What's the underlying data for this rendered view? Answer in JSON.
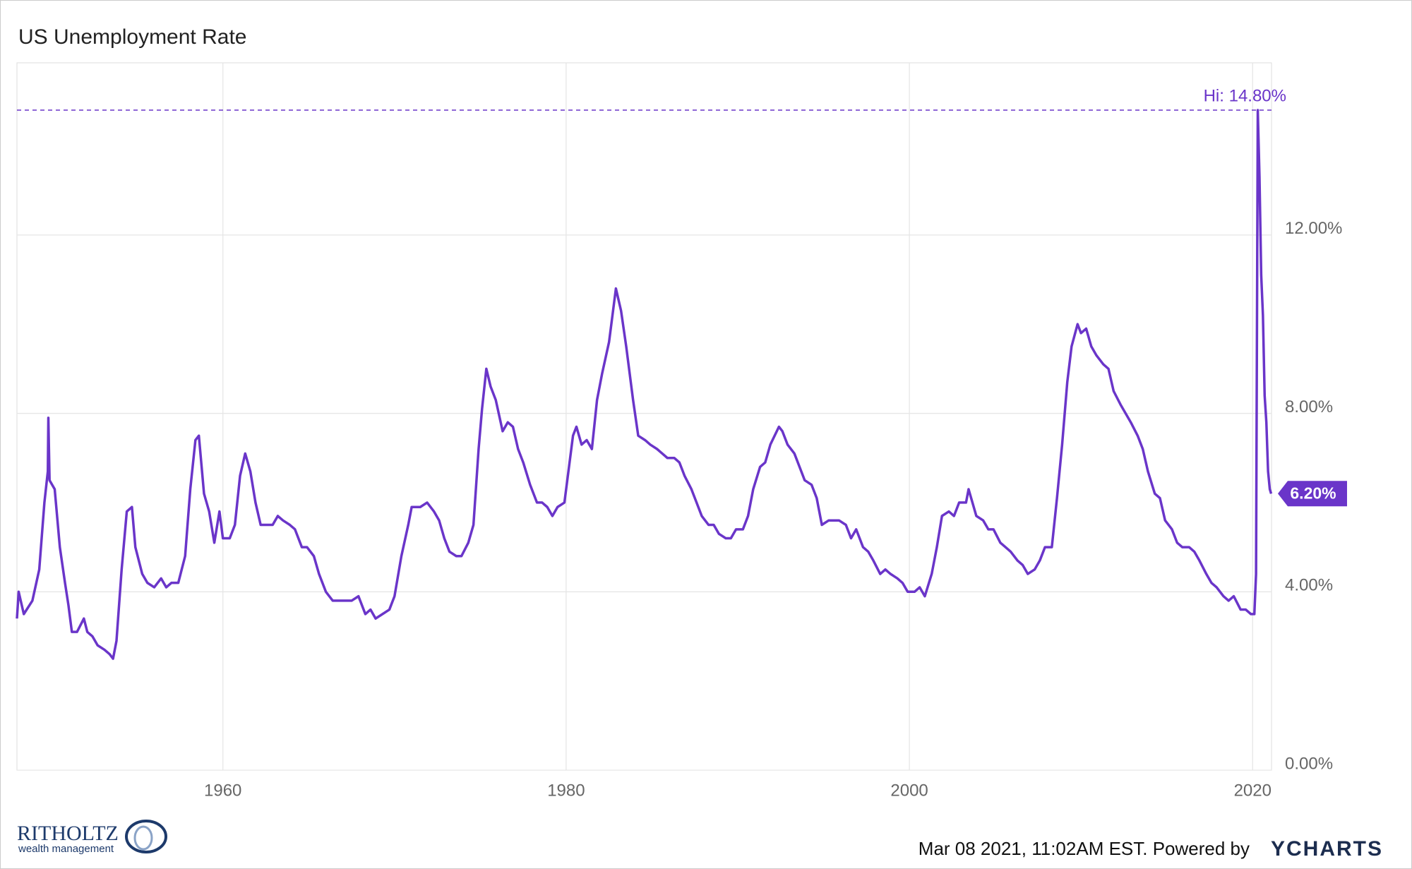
{
  "chart_data": {
    "type": "line",
    "title": "US Unemployment Rate",
    "x": [
      1948.0,
      1948.1,
      1948.4,
      1948.9,
      1949.3,
      1949.6,
      1949.8,
      1949.83,
      1949.9,
      1950.2,
      1950.5,
      1950.8,
      1951.0,
      1951.2,
      1951.5,
      1951.9,
      1952.1,
      1952.4,
      1952.7,
      1953.1,
      1953.4,
      1953.6,
      1953.8,
      1954.1,
      1954.4,
      1954.7,
      1954.9,
      1955.3,
      1955.6,
      1956.0,
      1956.4,
      1956.7,
      1957.0,
      1957.4,
      1957.8,
      1958.1,
      1958.4,
      1958.6,
      1958.9,
      1959.2,
      1959.5,
      1959.8,
      1960.0,
      1960.4,
      1960.7,
      1961.0,
      1961.3,
      1961.6,
      1961.9,
      1962.2,
      1962.5,
      1962.9,
      1963.2,
      1963.5,
      1963.9,
      1964.2,
      1964.6,
      1964.9,
      1965.3,
      1965.6,
      1966.0,
      1966.4,
      1966.8,
      1967.2,
      1967.5,
      1967.9,
      1968.3,
      1968.6,
      1968.9,
      1969.3,
      1969.7,
      1970.0,
      1970.4,
      1970.8,
      1971.0,
      1971.5,
      1971.9,
      1972.3,
      1972.6,
      1972.9,
      1973.2,
      1973.6,
      1973.9,
      1974.3,
      1974.6,
      1974.9,
      1975.1,
      1975.35,
      1975.6,
      1975.9,
      1976.3,
      1976.6,
      1976.9,
      1977.2,
      1977.5,
      1977.9,
      1978.3,
      1978.6,
      1978.9,
      1979.2,
      1979.5,
      1979.9,
      1980.2,
      1980.4,
      1980.6,
      1980.9,
      1981.2,
      1981.5,
      1981.8,
      1982.1,
      1982.5,
      1982.9,
      1983.2,
      1983.5,
      1983.9,
      1984.2,
      1984.6,
      1984.9,
      1985.3,
      1985.6,
      1985.9,
      1986.3,
      1986.6,
      1986.9,
      1987.3,
      1987.6,
      1987.9,
      1988.3,
      1988.6,
      1988.9,
      1989.3,
      1989.6,
      1989.9,
      1990.3,
      1990.6,
      1990.9,
      1991.3,
      1991.6,
      1991.9,
      1992.4,
      1992.6,
      1992.9,
      1993.3,
      1993.6,
      1993.9,
      1994.3,
      1994.6,
      1994.9,
      1995.3,
      1995.6,
      1995.9,
      1996.3,
      1996.6,
      1996.9,
      1997.3,
      1997.6,
      1997.9,
      1998.3,
      1998.6,
      1998.9,
      1999.3,
      1999.6,
      1999.9,
      2000.3,
      2000.6,
      2000.9,
      2001.3,
      2001.6,
      2001.9,
      2002.3,
      2002.6,
      2002.9,
      2003.3,
      2003.45,
      2003.9,
      2004.3,
      2004.6,
      2004.9,
      2005.3,
      2005.6,
      2005.9,
      2006.3,
      2006.6,
      2006.9,
      2007.3,
      2007.6,
      2007.9,
      2008.3,
      2008.6,
      2008.9,
      2009.2,
      2009.45,
      2009.8,
      2010.0,
      2010.3,
      2010.6,
      2010.9,
      2011.3,
      2011.6,
      2011.9,
      2012.3,
      2012.6,
      2012.9,
      2013.3,
      2013.6,
      2013.9,
      2014.3,
      2014.6,
      2014.9,
      2015.3,
      2015.6,
      2015.9,
      2016.3,
      2016.6,
      2016.9,
      2017.3,
      2017.6,
      2017.9,
      2018.3,
      2018.6,
      2018.9,
      2019.3,
      2019.6,
      2019.9,
      2020.1,
      2020.2,
      2020.3,
      2020.4,
      2020.5,
      2020.6,
      2020.7,
      2020.8,
      2020.9,
      2021.0,
      2021.08
    ],
    "series": [
      {
        "color": "#6a35c9",
        "values": [
          3.4,
          4.0,
          3.5,
          3.8,
          4.5,
          6.0,
          6.7,
          7.9,
          6.5,
          6.3,
          5.0,
          4.2,
          3.7,
          3.1,
          3.1,
          3.4,
          3.1,
          3.0,
          2.8,
          2.7,
          2.6,
          2.5,
          2.9,
          4.5,
          5.8,
          5.9,
          5.0,
          4.4,
          4.2,
          4.1,
          4.3,
          4.1,
          4.2,
          4.2,
          4.8,
          6.3,
          7.4,
          7.5,
          6.2,
          5.8,
          5.1,
          5.8,
          5.2,
          5.2,
          5.5,
          6.6,
          7.1,
          6.7,
          6.0,
          5.5,
          5.5,
          5.5,
          5.7,
          5.6,
          5.5,
          5.4,
          5.0,
          5.0,
          4.8,
          4.4,
          4.0,
          3.8,
          3.8,
          3.8,
          3.8,
          3.9,
          3.5,
          3.6,
          3.4,
          3.5,
          3.6,
          3.9,
          4.8,
          5.5,
          5.9,
          5.9,
          6.0,
          5.8,
          5.6,
          5.2,
          4.9,
          4.8,
          4.8,
          5.1,
          5.5,
          7.2,
          8.1,
          9.0,
          8.6,
          8.3,
          7.6,
          7.8,
          7.7,
          7.2,
          6.9,
          6.4,
          6.0,
          6.0,
          5.9,
          5.7,
          5.9,
          6.0,
          6.9,
          7.5,
          7.7,
          7.3,
          7.4,
          7.2,
          8.3,
          8.9,
          9.6,
          10.8,
          10.3,
          9.5,
          8.3,
          7.5,
          7.4,
          7.3,
          7.2,
          7.1,
          7.0,
          7.0,
          6.9,
          6.6,
          6.3,
          6.0,
          5.7,
          5.5,
          5.5,
          5.3,
          5.2,
          5.2,
          5.4,
          5.4,
          5.7,
          6.3,
          6.8,
          6.9,
          7.3,
          7.7,
          7.6,
          7.3,
          7.1,
          6.8,
          6.5,
          6.4,
          6.1,
          5.5,
          5.6,
          5.6,
          5.6,
          5.5,
          5.2,
          5.4,
          5.0,
          4.9,
          4.7,
          4.4,
          4.5,
          4.4,
          4.3,
          4.2,
          4.0,
          4.0,
          4.1,
          3.9,
          4.4,
          5.0,
          5.7,
          5.8,
          5.7,
          6.0,
          6.0,
          6.3,
          5.7,
          5.6,
          5.4,
          5.4,
          5.1,
          5.0,
          4.9,
          4.7,
          4.6,
          4.4,
          4.5,
          4.7,
          5.0,
          5.0,
          6.1,
          7.3,
          8.7,
          9.5,
          10.0,
          9.8,
          9.9,
          9.5,
          9.3,
          9.1,
          9.0,
          8.5,
          8.2,
          8.0,
          7.8,
          7.5,
          7.2,
          6.7,
          6.2,
          6.1,
          5.6,
          5.4,
          5.1,
          5.0,
          5.0,
          4.9,
          4.7,
          4.4,
          4.2,
          4.1,
          3.9,
          3.8,
          3.9,
          3.6,
          3.6,
          3.5,
          3.5,
          4.4,
          14.8,
          13.3,
          11.1,
          10.2,
          8.4,
          7.8,
          6.7,
          6.3,
          6.2
        ]
      }
    ],
    "xlim": [
      1948,
      2021.1
    ],
    "xticks": [
      1960,
      1980,
      2000,
      2020
    ],
    "ylim": [
      0,
      15.86
    ],
    "yticks": [
      {
        "value": 0,
        "label": "0.00%"
      },
      {
        "value": 4,
        "label": "4.00%"
      },
      {
        "value": 8,
        "label": "8.00%"
      },
      {
        "value": 12,
        "label": "12.00%"
      }
    ],
    "grid": true,
    "high": {
      "value": 14.8,
      "label": "Hi: 14.80%"
    },
    "last_value": {
      "value": 6.2,
      "label": "6.20%"
    }
  },
  "footer": {
    "timestamp": "Mar 08 2021, 11:02AM EST. Powered by",
    "brand": "YCHARTS",
    "logo_name": "RITHOLTZ",
    "logo_tagline": "wealth management"
  }
}
